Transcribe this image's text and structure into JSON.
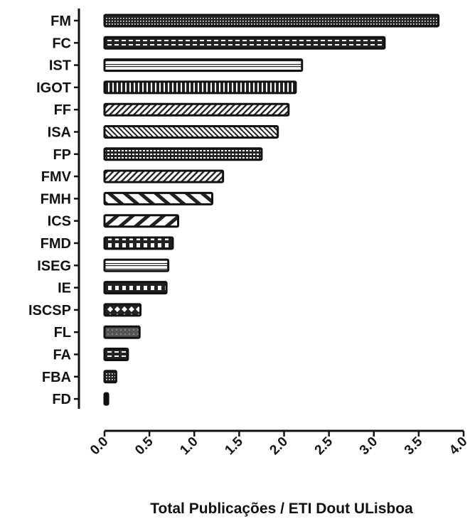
{
  "chart_data": {
    "type": "bar",
    "orientation": "horizontal",
    "categories": [
      "FM",
      "FC",
      "IST",
      "IGOT",
      "FF",
      "ISA",
      "FP",
      "FMV",
      "FMH",
      "ICS",
      "FMD",
      "ISEG",
      "IE",
      "ISCSP",
      "FL",
      "FA",
      "FBA",
      "FD"
    ],
    "values": [
      3.72,
      3.12,
      2.2,
      2.13,
      2.05,
      1.93,
      1.75,
      1.32,
      1.2,
      0.82,
      0.76,
      0.71,
      0.69,
      0.4,
      0.39,
      0.26,
      0.13,
      0.04
    ],
    "patterns": [
      "dots",
      "dashes",
      "double-lines",
      "vertical-bars",
      "diag-fwd",
      "diag-back",
      "grid",
      "diag-fwd",
      "diag-back-wide",
      "diag-fwd-wide",
      "checker",
      "double-lines",
      "checker",
      "diamonds",
      "solid-gray",
      "dashes",
      "dots",
      "solid-black"
    ],
    "xlabel": "Total Publicações / ETI Dout ULisboa",
    "ylabel": "",
    "xlim": [
      0,
      4.0
    ],
    "xticks": [
      "0.0",
      "0.5",
      "1.0",
      "1.5",
      "2.0",
      "2.5",
      "3.0",
      "3.5",
      "4.0"
    ],
    "grid": false,
    "bar_color": "#111111",
    "background": "#ffffff"
  }
}
